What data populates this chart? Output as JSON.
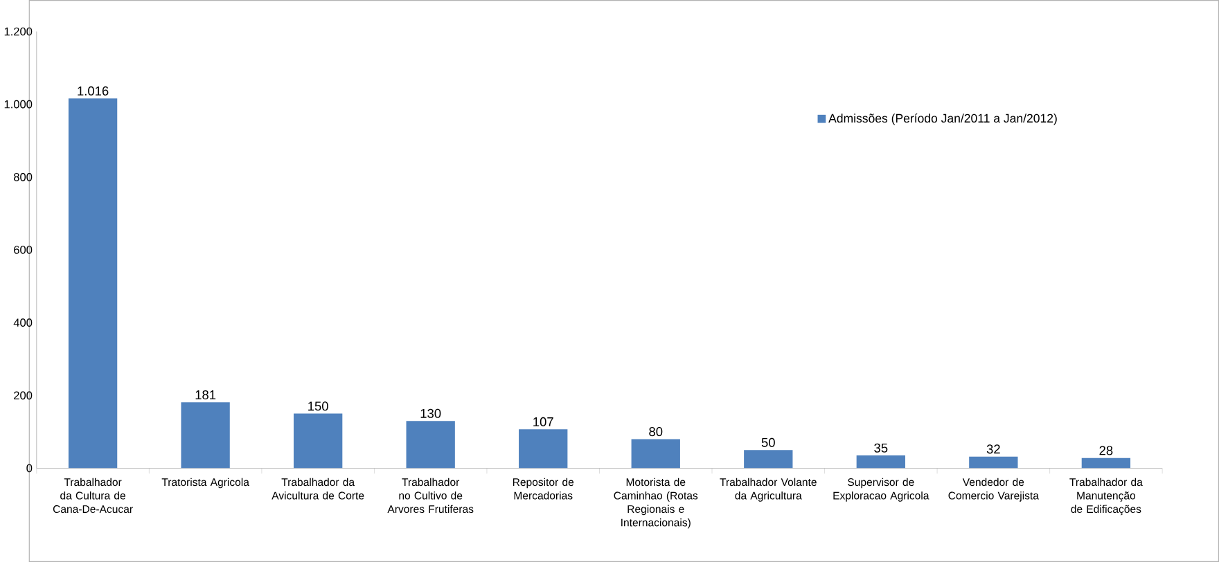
{
  "chart_data": {
    "type": "bar",
    "categories": [
      "Trabalhador da Cultura de Cana-De-Acucar",
      "Tratorista Agricola",
      "Trabalhador da Avicultura de Corte",
      "Trabalhador no Cultivo de Arvores Frutiferas",
      "Repositor de Mercadorias",
      "Motorista de Caminhao (Rotas Regionais e Internacionais)",
      "Trabalhador Volante da Agricultura",
      "Supervisor de Exploracao Agricola",
      "Vendedor de Comercio Varejista",
      "Trabalhador da Manutenção de Edificações"
    ],
    "series": [
      {
        "name": "Admissões (Período Jan/2011 a Jan/2012)",
        "color": "#4f81bd",
        "values": [
          1016,
          181,
          150,
          130,
          107,
          80,
          50,
          35,
          32,
          28
        ],
        "value_labels": [
          "1.016",
          "181",
          "150",
          "130",
          "107",
          "80",
          "50",
          "35",
          "32",
          "28"
        ]
      }
    ],
    "ylim": [
      0,
      1200
    ],
    "yticks": [
      0,
      200,
      400,
      600,
      800,
      {
        "value": 1000,
        "label": "1.000"
      },
      {
        "value": 1200,
        "label": "1.200"
      }
    ],
    "legend": "top right",
    "grid": false
  }
}
